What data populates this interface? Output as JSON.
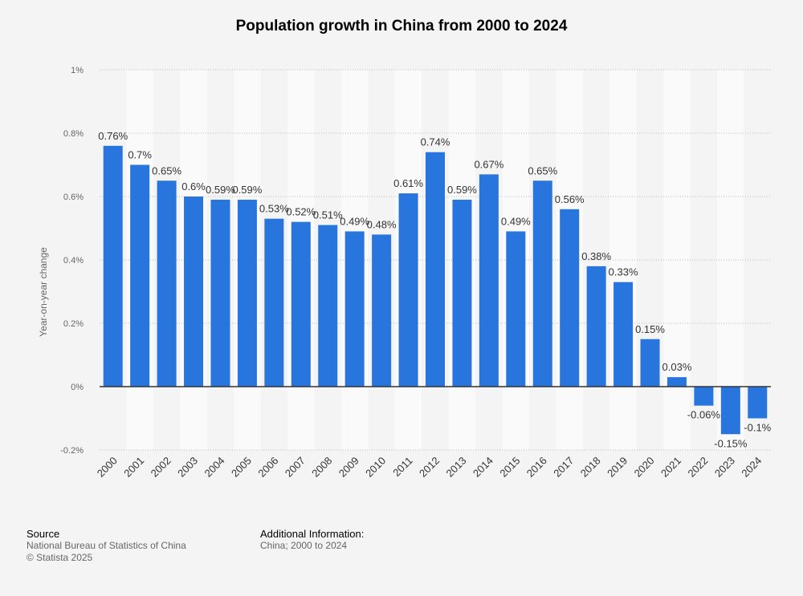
{
  "chart_data": {
    "type": "bar",
    "title": "Population growth in China from 2000 to 2024",
    "xlabel": "",
    "ylabel": "Year-on-year change",
    "ylim": [
      -0.2,
      1.0
    ],
    "yticks": [
      -0.2,
      0,
      0.2,
      0.4,
      0.6,
      0.8,
      1.0
    ],
    "ytick_labels": [
      "-0.2%",
      "0%",
      "0.2%",
      "0.4%",
      "0.6%",
      "0.8%",
      "1%"
    ],
    "grid": true,
    "categories": [
      "2000",
      "2001",
      "2002",
      "2003",
      "2004",
      "2005",
      "2006",
      "2007",
      "2008",
      "2009",
      "2010",
      "2011",
      "2012",
      "2013",
      "2014",
      "2015",
      "2016",
      "2017",
      "2018",
      "2019",
      "2020",
      "2021",
      "2022",
      "2023",
      "2024"
    ],
    "values": [
      0.76,
      0.7,
      0.65,
      0.6,
      0.59,
      0.59,
      0.53,
      0.52,
      0.51,
      0.49,
      0.48,
      0.61,
      0.74,
      0.59,
      0.67,
      0.49,
      0.65,
      0.56,
      0.38,
      0.33,
      0.15,
      0.03,
      -0.06,
      -0.15,
      -0.1
    ],
    "data_labels": [
      "0.76%",
      "0.7%",
      "0.65%",
      "0.6%",
      "0.59%",
      "0.59%",
      "0.53%",
      "0.52%",
      "0.51%",
      "0.49%",
      "0.48%",
      "0.61%",
      "0.74%",
      "0.59%",
      "0.67%",
      "0.49%",
      "0.65%",
      "0.56%",
      "0.38%",
      "0.33%",
      "0.15%",
      "0.03%",
      "-0.06%",
      "-0.15%",
      "-0.1%"
    ],
    "bar_color": "#2876dd"
  },
  "footer": {
    "source_heading": "Source",
    "source_lines": [
      "National Bureau of Statistics of China",
      "© Statista 2025"
    ],
    "info_heading": "Additional Information:",
    "info_lines": [
      "China; 2000 to 2024"
    ]
  }
}
